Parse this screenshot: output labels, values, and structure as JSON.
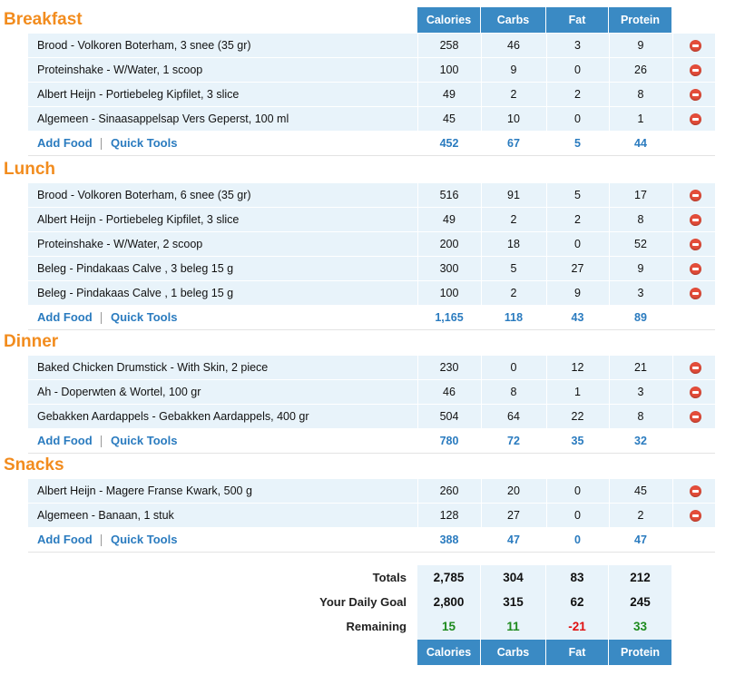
{
  "columns": [
    "Calories",
    "Carbs",
    "Fat",
    "Protein"
  ],
  "meals": [
    {
      "title": "Breakfast",
      "entries": [
        {
          "name": "Brood - Volkoren Boterham, 3 snee (35 gr)",
          "values": [
            "258",
            "46",
            "3",
            "9"
          ]
        },
        {
          "name": "Proteinshake - W/Water, 1 scoop",
          "values": [
            "100",
            "9",
            "0",
            "26"
          ]
        },
        {
          "name": "Albert Heijn - Portiebeleg Kipfilet, 3 slice",
          "values": [
            "49",
            "2",
            "2",
            "8"
          ]
        },
        {
          "name": "Algemeen - Sinaasappelsap Vers Geperst, 100 ml",
          "values": [
            "45",
            "10",
            "0",
            "1"
          ]
        }
      ],
      "totals": [
        "452",
        "67",
        "5",
        "44"
      ]
    },
    {
      "title": "Lunch",
      "entries": [
        {
          "name": "Brood - Volkoren Boterham, 6 snee (35 gr)",
          "values": [
            "516",
            "91",
            "5",
            "17"
          ]
        },
        {
          "name": "Albert Heijn - Portiebeleg Kipfilet, 3 slice",
          "values": [
            "49",
            "2",
            "2",
            "8"
          ]
        },
        {
          "name": "Proteinshake - W/Water, 2 scoop",
          "values": [
            "200",
            "18",
            "0",
            "52"
          ]
        },
        {
          "name": "Beleg - Pindakaas Calve , 3 beleg 15 g",
          "values": [
            "300",
            "5",
            "27",
            "9"
          ]
        },
        {
          "name": "Beleg - Pindakaas Calve , 1 beleg 15 g",
          "values": [
            "100",
            "2",
            "9",
            "3"
          ]
        }
      ],
      "totals": [
        "1,165",
        "118",
        "43",
        "89"
      ]
    },
    {
      "title": "Dinner",
      "entries": [
        {
          "name": "Baked Chicken Drumstick - With Skin, 2 piece",
          "values": [
            "230",
            "0",
            "12",
            "21"
          ]
        },
        {
          "name": "Ah - Doperwten & Wortel, 100 gr",
          "values": [
            "46",
            "8",
            "1",
            "3"
          ]
        },
        {
          "name": "Gebakken Aardappels - Gebakken Aardappels, 400 gr",
          "values": [
            "504",
            "64",
            "22",
            "8"
          ]
        }
      ],
      "totals": [
        "780",
        "72",
        "35",
        "32"
      ]
    },
    {
      "title": "Snacks",
      "entries": [
        {
          "name": "Albert Heijn - Magere Franse Kwark, 500 g",
          "values": [
            "260",
            "20",
            "0",
            "45"
          ]
        },
        {
          "name": "Algemeen - Banaan, 1 stuk",
          "values": [
            "128",
            "27",
            "0",
            "2"
          ]
        }
      ],
      "totals": [
        "388",
        "47",
        "0",
        "47"
      ]
    }
  ],
  "links": {
    "add_food": "Add Food",
    "quick_tools": "Quick Tools"
  },
  "summary": {
    "totals": {
      "label": "Totals",
      "values": [
        "2,785",
        "304",
        "83",
        "212"
      ]
    },
    "daily_goal": {
      "label": "Your Daily Goal",
      "values": [
        "2,800",
        "315",
        "62",
        "245"
      ]
    },
    "remaining": {
      "label": "Remaining",
      "values": [
        "15",
        "11",
        "-21",
        "33"
      ]
    }
  },
  "remaining_status": [
    "positive",
    "positive",
    "negative",
    "positive"
  ],
  "colors": {
    "meal_title": "#f28c1e",
    "header_bg": "#3a8ac4",
    "link": "#2a7bbf",
    "row_bg": "#e8f3fa",
    "positive": "#1d8a1d",
    "negative": "#e01010"
  },
  "icons": {
    "remove": "remove-entry-icon"
  }
}
